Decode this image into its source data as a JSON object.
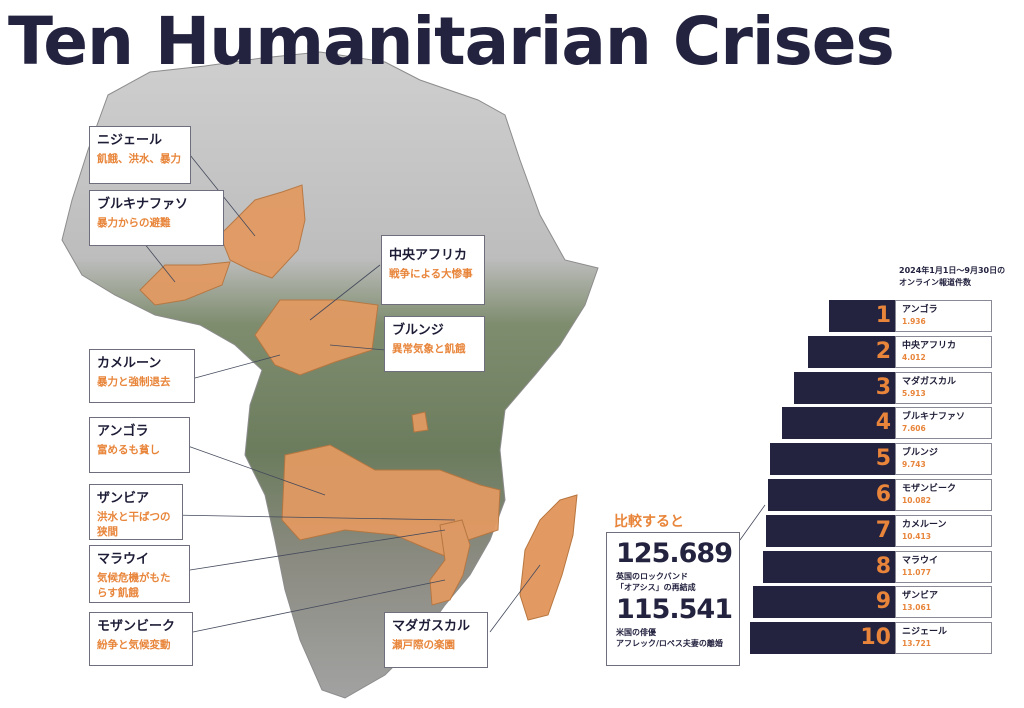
{
  "title": "Ten Humanitarian Crises",
  "colors": {
    "navy": "#23223f",
    "orange": "#e8853a",
    "highlight": "#e29a62"
  },
  "map_labels": [
    {
      "name": "ニジェール",
      "desc": "飢餓、洪水、暴力"
    },
    {
      "name": "ブルキナファソ",
      "desc": "暴力からの避難"
    },
    {
      "name": "中央アフリカ",
      "desc": "戦争による大惨事"
    },
    {
      "name": "ブルンジ",
      "desc": "異常気象と飢餓"
    },
    {
      "name": "カメルーン",
      "desc": "暴力と強制退去"
    },
    {
      "name": "アンゴラ",
      "desc": "富めるも貧し"
    },
    {
      "name": "ザンビア",
      "desc": "洪水と干ばつの狭間"
    },
    {
      "name": "マラウイ",
      "desc": "気候危機がもたらす飢餓"
    },
    {
      "name": "モザンビーク",
      "desc": "紛争と気候変動"
    },
    {
      "name": "マダガスカル",
      "desc": "瀬戸際の楽園"
    }
  ],
  "comparison": {
    "heading": "比較すると",
    "items": [
      {
        "value": "125.689",
        "line1": "英国のロックバンド",
        "line2": "「オアシス」の再結成"
      },
      {
        "value": "115.541",
        "line1": "米国の俳優",
        "line2": "アフレック/ロペス夫妻の離婚"
      }
    ]
  },
  "ranking": {
    "heading_line1": "2024年1月1日～9月30日の",
    "heading_line2": "オンライン報道件数",
    "items": [
      {
        "rank": "1",
        "name": "アンゴラ",
        "value": "1.936",
        "count": 1936
      },
      {
        "rank": "2",
        "name": "中央アフリカ",
        "value": "4.012",
        "count": 4012
      },
      {
        "rank": "3",
        "name": "マダガスカル",
        "value": "5.913",
        "count": 5913
      },
      {
        "rank": "4",
        "name": "ブルキナファソ",
        "value": "7.606",
        "count": 7606
      },
      {
        "rank": "5",
        "name": "ブルンジ",
        "value": "9.743",
        "count": 9743
      },
      {
        "rank": "6",
        "name": "モザンビーク",
        "value": "10.082",
        "count": 10082
      },
      {
        "rank": "7",
        "name": "カメルーン",
        "value": "10.413",
        "count": 10413
      },
      {
        "rank": "8",
        "name": "マラウイ",
        "value": "11.077",
        "count": 11077
      },
      {
        "rank": "9",
        "name": "ザンビア",
        "value": "13.061",
        "count": 13061
      },
      {
        "rank": "10",
        "name": "ニジェール",
        "value": "13.721",
        "count": 13721
      }
    ]
  }
}
